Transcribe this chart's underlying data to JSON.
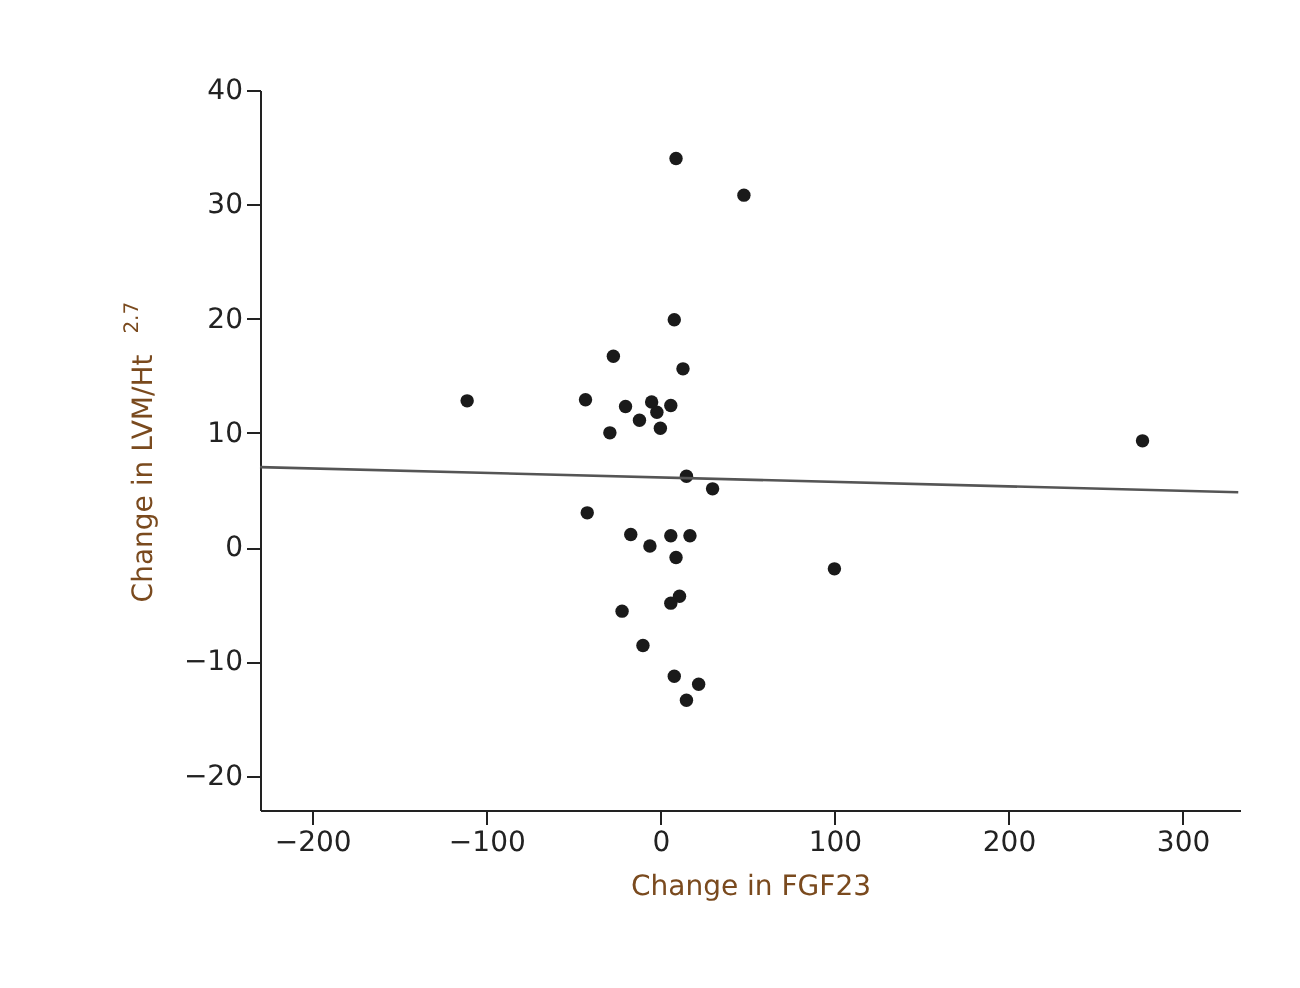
{
  "chart_data": {
    "type": "scatter",
    "xlabel": "Change in FGF23",
    "ylabel": "Change in LVM/Ht$^{2.7}$",
    "xlim": [
      -230,
      333
    ],
    "ylim": [
      -23,
      40
    ],
    "xticks": [
      -200,
      -100,
      0,
      100,
      200,
      300
    ],
    "yticks": [
      -20,
      -10,
      0,
      10,
      20,
      30,
      40
    ],
    "grid": false,
    "series": [
      {
        "marker": "circle",
        "color": "#1a1a1a",
        "x": [
          9,
          48,
          8,
          -27,
          13,
          -111,
          -43,
          -20,
          -5,
          6,
          -12,
          -2,
          0,
          -29,
          277,
          15,
          30,
          -42,
          -17,
          6,
          17,
          -6,
          9,
          100,
          11,
          6,
          -22,
          -10,
          8,
          22,
          15
        ],
        "values": [
          34,
          30.8,
          19.9,
          16.7,
          15.6,
          12.8,
          12.9,
          12.3,
          12.7,
          12.4,
          11.1,
          11.8,
          10.4,
          10,
          9.3,
          6.2,
          5.1,
          3,
          1.1,
          1,
          1,
          0.1,
          -0.9,
          -1.9,
          -4.3,
          -4.9,
          -5.6,
          -8.6,
          -11.3,
          -12,
          -13.4
        ]
      },
      {
        "type": "line",
        "color": "#555555",
        "x": [
          -230,
          332
        ],
        "values": [
          7.0,
          4.8
        ]
      }
    ]
  }
}
